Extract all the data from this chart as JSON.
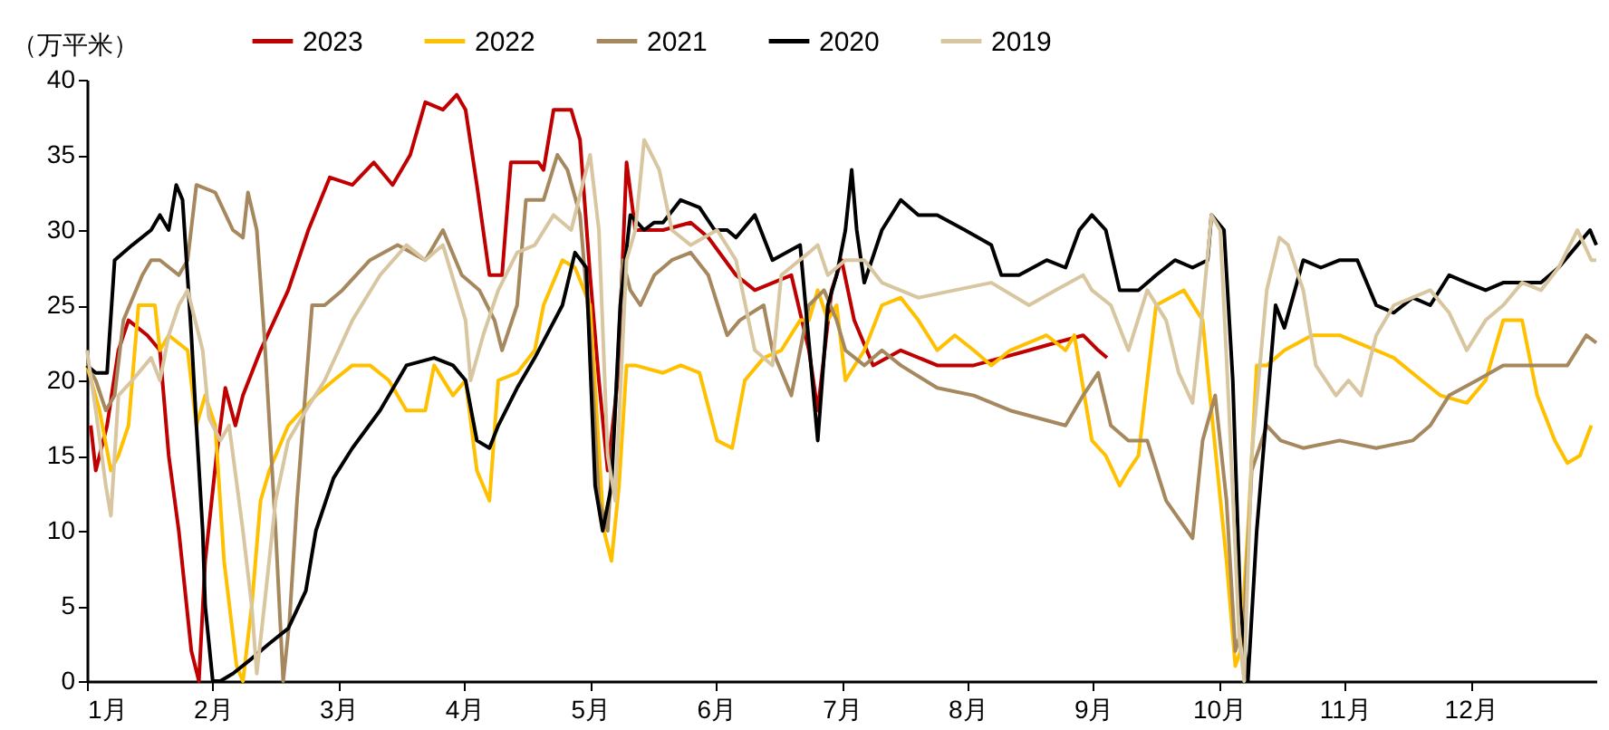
{
  "chart_data": {
    "type": "line",
    "ylabel": "（万平米）",
    "legend": "top",
    "grid": false,
    "xlim": [
      1,
      13
    ],
    "xticks": [
      {
        "value": 1,
        "label": "1月"
      },
      {
        "value": 2,
        "label": "2月"
      },
      {
        "value": 3,
        "label": "3月"
      },
      {
        "value": 4,
        "label": "4月"
      },
      {
        "value": 5,
        "label": "5月"
      },
      {
        "value": 6,
        "label": "6月"
      },
      {
        "value": 7,
        "label": "7月"
      },
      {
        "value": 8,
        "label": "8月"
      },
      {
        "value": 9,
        "label": "9月"
      },
      {
        "value": 10,
        "label": "10月"
      },
      {
        "value": 11,
        "label": "11月"
      },
      {
        "value": 12,
        "label": "12月"
      }
    ],
    "ylim": [
      0,
      40
    ],
    "yticks": [
      0,
      5,
      10,
      15,
      20,
      25,
      30,
      35,
      40
    ],
    "series": [
      {
        "name": "2023",
        "color": "#c00000",
        "x": [
          1.03,
          1.07,
          1.16,
          1.25,
          1.33,
          1.48,
          1.58,
          1.65,
          1.73,
          1.83,
          1.89,
          1.94,
          2.03,
          2.1,
          2.18,
          2.24,
          2.38,
          2.6,
          2.76,
          2.93,
          3.11,
          3.28,
          3.43,
          3.57,
          3.69,
          3.83,
          3.94,
          4.01,
          4.1,
          4.2,
          4.3,
          4.37,
          4.59,
          4.63,
          4.71,
          4.85,
          4.92,
          5.0,
          5.07,
          5.14,
          5.22,
          5.29,
          5.36,
          5.58,
          5.8,
          5.94,
          6.16,
          6.31,
          6.6,
          6.74,
          6.81,
          6.92,
          7.0,
          7.1,
          7.25,
          7.47,
          7.76,
          8.05,
          8.27,
          8.49,
          8.7,
          8.92,
          9.04,
          9.11
        ],
        "values": [
          17,
          14,
          17,
          22,
          24,
          23,
          22,
          15,
          10,
          2,
          0,
          8,
          15,
          19.5,
          17,
          19,
          22,
          26,
          30,
          33.5,
          33,
          34.5,
          33,
          35,
          38.5,
          38,
          39,
          38,
          33,
          27,
          27,
          34.5,
          34.5,
          34,
          38,
          38,
          36,
          27,
          20,
          14,
          20,
          34.5,
          30,
          30,
          30.5,
          29.5,
          27,
          26,
          27,
          22,
          18,
          26,
          28,
          24,
          21,
          22,
          21,
          21,
          21.5,
          22,
          22.5,
          23,
          22,
          21.5
        ]
      },
      {
        "name": "2022",
        "color": "#ffc000",
        "x": [
          1,
          1.1,
          1.19,
          1.25,
          1.33,
          1.41,
          1.54,
          1.58,
          1.65,
          1.8,
          1.87,
          1.94,
          2.02,
          2.09,
          2.19,
          2.24,
          2.31,
          2.38,
          2.45,
          2.6,
          2.82,
          2.96,
          3.11,
          3.25,
          3.4,
          3.54,
          3.69,
          3.76,
          3.91,
          4.01,
          4.1,
          4.2,
          4.27,
          4.42,
          4.56,
          4.63,
          4.78,
          4.88,
          5.0,
          5.11,
          5.17,
          5.23,
          5.29,
          5.36,
          5.58,
          5.72,
          5.87,
          6.01,
          6.13,
          6.23,
          6.38,
          6.52,
          6.67,
          6.74,
          6.81,
          6.89,
          6.96,
          7.03,
          7.18,
          7.32,
          7.47,
          7.61,
          7.76,
          7.9,
          8.05,
          8.19,
          8.34,
          8.63,
          8.78,
          8.85,
          8.99,
          9.1,
          9.21,
          9.28,
          9.36,
          9.5,
          9.72,
          9.87,
          9.94,
          10.06,
          10.13,
          10.17,
          10.23,
          10.3,
          10.38,
          10.52,
          10.74,
          10.96,
          11.25,
          11.39,
          11.61,
          11.76,
          11.97,
          12.12,
          12.26,
          12.41,
          12.53,
          12.67,
          12.77,
          12.87,
          12.96
        ],
        "values": [
          21,
          18,
          14,
          15,
          17,
          25,
          25,
          22,
          23,
          22,
          17,
          19,
          17,
          8,
          1,
          0,
          5,
          12,
          14,
          17,
          19,
          20,
          21,
          21,
          20,
          18,
          18,
          21,
          19,
          20,
          14,
          12,
          20,
          20.5,
          22,
          25,
          28,
          27.5,
          25,
          10,
          8,
          13,
          21,
          21,
          20.5,
          21,
          20.5,
          16,
          15.5,
          20,
          21.5,
          22,
          24,
          24,
          26,
          24,
          25,
          20,
          22,
          25,
          25.5,
          24,
          22,
          23,
          22,
          21,
          22,
          23,
          22,
          23,
          16,
          15,
          13,
          14,
          15,
          25,
          26,
          24,
          18,
          8,
          1,
          2,
          10,
          21,
          21,
          22,
          23,
          23,
          22,
          21.5,
          20,
          19,
          18.5,
          20,
          24,
          24,
          19,
          16,
          14.5,
          15,
          17
        ]
      },
      {
        "name": "2021",
        "color": "#a6885f",
        "x": [
          1,
          1.07,
          1.15,
          1.22,
          1.29,
          1.44,
          1.51,
          1.58,
          1.73,
          1.8,
          1.87,
          2.02,
          2.16,
          2.24,
          2.28,
          2.35,
          2.41,
          2.5,
          2.56,
          2.61,
          2.67,
          2.79,
          2.89,
          3.03,
          3.25,
          3.47,
          3.69,
          3.83,
          3.98,
          4.12,
          4.24,
          4.3,
          4.42,
          4.49,
          4.63,
          4.74,
          4.82,
          4.92,
          5.0,
          5.07,
          5.14,
          5.2,
          5.26,
          5.32,
          5.4,
          5.51,
          5.65,
          5.8,
          5.94,
          6.09,
          6.19,
          6.38,
          6.45,
          6.6,
          6.67,
          6.74,
          6.86,
          6.96,
          7.03,
          7.18,
          7.32,
          7.47,
          7.76,
          8.05,
          8.34,
          8.56,
          8.78,
          8.92,
          9.04,
          9.14,
          9.28,
          9.43,
          9.58,
          9.79,
          9.87,
          9.97,
          10.06,
          10.13,
          10.2,
          10.26,
          10.38,
          10.49,
          10.67,
          10.96,
          11.25,
          11.54,
          11.68,
          11.83,
          12.05,
          12.26,
          12.56,
          12.77,
          12.92,
          13
        ],
        "values": [
          21,
          20,
          18,
          19,
          24,
          27,
          28,
          28,
          27,
          28,
          33,
          32.5,
          30,
          29.5,
          32.5,
          30,
          23,
          10,
          0,
          4,
          12,
          25,
          25,
          26,
          28,
          29,
          28,
          30,
          27,
          26,
          24,
          22,
          25,
          32,
          32,
          35,
          34,
          31,
          23,
          12,
          10,
          18,
          28,
          26,
          25,
          27,
          28,
          28.5,
          27,
          23,
          24,
          25,
          22,
          19,
          22,
          25,
          26,
          24,
          22,
          21,
          22,
          21,
          19.5,
          19,
          18,
          17.5,
          17,
          19,
          20.5,
          17,
          16,
          16,
          12,
          9.5,
          16,
          19,
          12,
          2,
          4,
          14,
          17,
          16,
          15.5,
          16,
          15.5,
          16,
          17,
          19,
          20,
          21,
          21,
          21,
          23,
          22.5
        ]
      },
      {
        "name": "2020",
        "color": "#000000",
        "x": [
          1,
          1.07,
          1.16,
          1.22,
          1.36,
          1.51,
          1.58,
          1.65,
          1.71,
          1.76,
          1.83,
          1.87,
          1.92,
          1.94,
          2.0,
          2.06,
          2.16,
          2.31,
          2.45,
          2.6,
          2.74,
          2.82,
          2.96,
          3.11,
          3.33,
          3.54,
          3.76,
          3.91,
          4.01,
          4.1,
          4.2,
          4.27,
          4.42,
          4.56,
          4.78,
          4.88,
          4.97,
          5.04,
          5.1,
          5.17,
          5.24,
          5.32,
          5.43,
          5.51,
          5.58,
          5.72,
          5.87,
          5.99,
          6.09,
          6.16,
          6.31,
          6.45,
          6.67,
          6.81,
          6.89,
          6.96,
          7.03,
          7.08,
          7.12,
          7.18,
          7.32,
          7.47,
          7.61,
          7.76,
          7.98,
          8.19,
          8.27,
          8.41,
          8.63,
          8.78,
          8.89,
          8.99,
          9.1,
          9.21,
          9.36,
          9.5,
          9.65,
          9.79,
          9.91,
          9.94,
          10.04,
          10.11,
          10.17,
          10.23,
          10.3,
          10.45,
          10.52,
          10.67,
          10.81,
          10.96,
          11.1,
          11.25,
          11.39,
          11.54,
          11.68,
          11.83,
          11.97,
          12.12,
          12.26,
          12.56,
          12.7,
          12.85,
          12.95,
          13
        ],
        "values": [
          21,
          20.5,
          20.5,
          28,
          29,
          30,
          31,
          30,
          33,
          32,
          23,
          17,
          10,
          5,
          0,
          0,
          0.5,
          1.5,
          2.5,
          3.5,
          6,
          10,
          13.5,
          15.5,
          18,
          21,
          21.5,
          21,
          20,
          16,
          15.5,
          17,
          19.5,
          21.5,
          25,
          28.5,
          27.5,
          13,
          10,
          13,
          25,
          31,
          30,
          30.5,
          30.5,
          32,
          31.5,
          30,
          30,
          29.5,
          31,
          28,
          29,
          16,
          25,
          27,
          30,
          34,
          30,
          26.5,
          30,
          32,
          31,
          31,
          30,
          29,
          27,
          27,
          28,
          27.5,
          30,
          31,
          30,
          26,
          26,
          27,
          28,
          27.5,
          28,
          31,
          30,
          20,
          5,
          0,
          10,
          25,
          23.5,
          28,
          27.5,
          28,
          28,
          25,
          24.5,
          25.5,
          25,
          27,
          26.5,
          26,
          26.5,
          26.5,
          27.5,
          29,
          30,
          29
        ]
      },
      {
        "name": "2019",
        "color": "#d8c6a0",
        "x": [
          1,
          1.07,
          1.15,
          1.19,
          1.25,
          1.36,
          1.51,
          1.58,
          1.65,
          1.73,
          1.8,
          1.92,
          1.97,
          2.06,
          2.13,
          2.24,
          2.31,
          2.35,
          2.41,
          2.5,
          2.6,
          2.74,
          2.89,
          3.11,
          3.33,
          3.54,
          3.69,
          3.83,
          4.01,
          4.05,
          4.15,
          4.27,
          4.42,
          4.56,
          4.71,
          4.85,
          5.0,
          5.07,
          5.14,
          5.2,
          5.29,
          5.36,
          5.43,
          5.55,
          5.65,
          5.8,
          6.01,
          6.16,
          6.31,
          6.45,
          6.52,
          6.74,
          6.81,
          6.89,
          7.03,
          7.18,
          7.32,
          7.61,
          7.9,
          8.19,
          8.49,
          8.7,
          8.92,
          8.99,
          9.14,
          9.28,
          9.43,
          9.58,
          9.68,
          9.79,
          9.85,
          9.94,
          10.01,
          10.08,
          10.16,
          10.2,
          10.26,
          10.38,
          10.48,
          10.55,
          10.67,
          10.77,
          10.93,
          11.03,
          11.13,
          11.25,
          11.39,
          11.68,
          11.83,
          11.97,
          12.12,
          12.26,
          12.41,
          12.56,
          12.7,
          12.85,
          12.96,
          13
        ],
        "values": [
          22,
          18,
          13,
          11,
          19,
          20,
          21.5,
          20,
          23,
          25,
          26,
          22,
          17.5,
          16,
          17,
          10,
          5,
          0.5,
          5,
          12,
          16,
          18,
          20,
          24,
          27,
          29,
          28,
          29,
          24,
          20,
          23,
          26,
          28.5,
          29,
          31,
          30,
          35,
          30,
          15,
          12,
          28,
          30,
          36,
          34,
          30,
          29,
          30,
          28,
          22,
          21,
          27,
          28.5,
          29,
          27,
          28,
          28,
          26.5,
          25.5,
          26,
          26.5,
          25,
          26,
          27,
          26,
          25,
          22,
          26,
          24,
          20.5,
          18.5,
          23,
          31,
          30,
          18,
          3,
          0,
          15,
          26,
          29.5,
          29,
          26,
          21,
          19,
          20,
          19,
          23,
          25,
          26,
          24.5,
          22,
          24,
          25,
          26.5,
          26,
          27.5,
          30,
          28,
          28
        ]
      }
    ]
  }
}
